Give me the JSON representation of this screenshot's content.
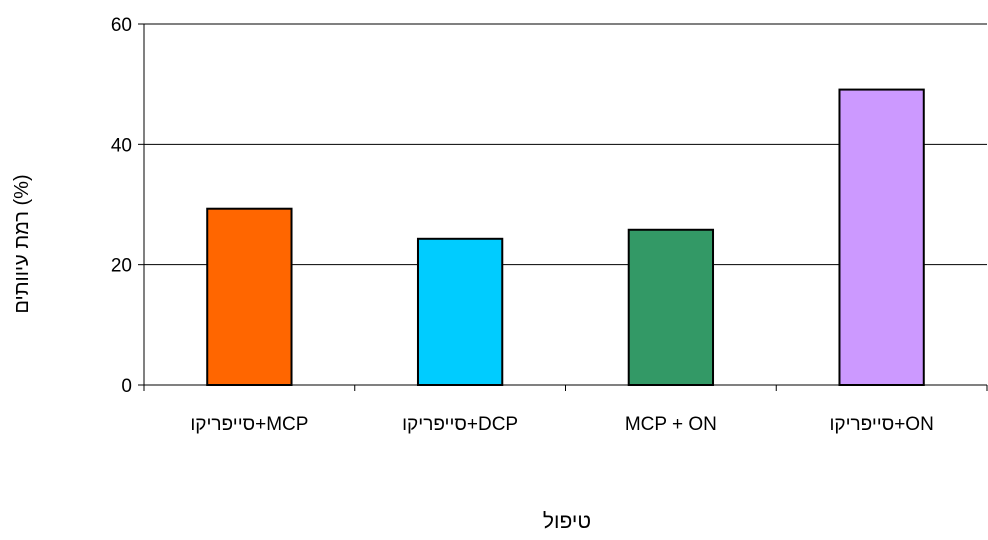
{
  "chart_data": {
    "type": "bar",
    "categories": [
      "סייפריקו+MCP",
      "סייפריקו+DCP",
      "MCP + ON",
      "סייפריקו+ON"
    ],
    "values": [
      29.3,
      24.3,
      25.8,
      49.1
    ],
    "colors": [
      "#ff6600",
      "#00ccff",
      "#339966",
      "#cc99ff"
    ],
    "bar_outline": "#000000",
    "ylim": [
      0,
      60
    ],
    "yticks": [
      0,
      20,
      40,
      60
    ],
    "ytick_labels": [
      "0",
      "20",
      "40",
      "60"
    ],
    "xlabel": "טיפול",
    "ylabel": "רמת עיוותים (%)",
    "grid": true,
    "legend": false
  }
}
